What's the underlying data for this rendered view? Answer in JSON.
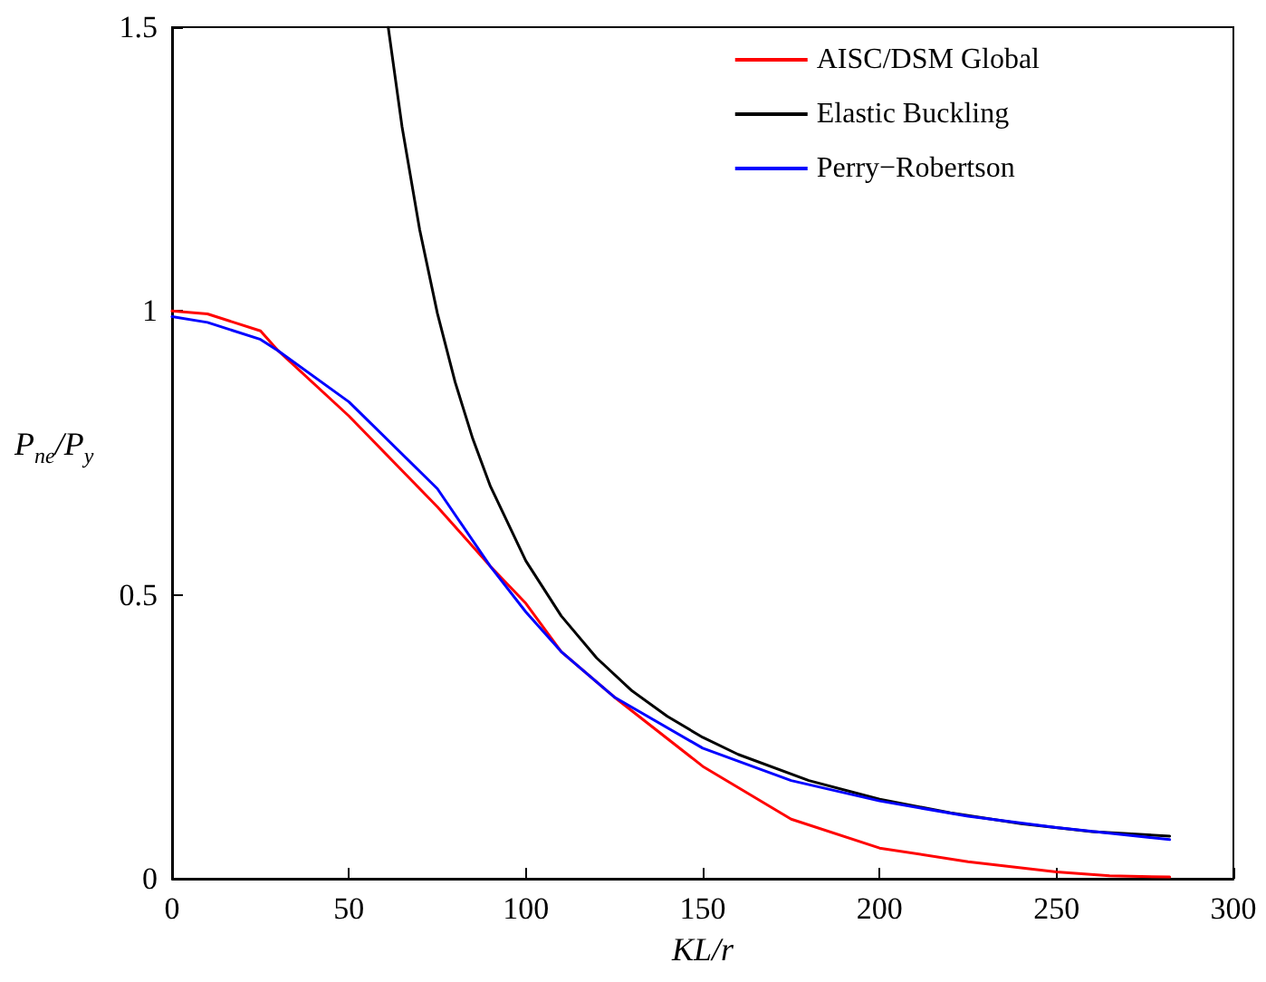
{
  "chart_data": {
    "type": "line",
    "xlabel": "KL/r",
    "ylabel": "P$_{ne}$/P$_{y}$",
    "xlim": [
      0,
      300
    ],
    "xticks": [
      0,
      50,
      100,
      150,
      200,
      250,
      300
    ],
    "ylim": [
      0,
      1.5
    ],
    "yticks": [
      0,
      0.5,
      1,
      1.5
    ],
    "grid": false,
    "legend": "top right",
    "marker": "none",
    "line_style": "solid",
    "series": [
      {
        "name": "AISC/DSM Global",
        "color": "#ff0000",
        "x": [
          0,
          10,
          25,
          30,
          50,
          75,
          90,
          100,
          110,
          125,
          150,
          175,
          200,
          225,
          250,
          265,
          282
        ],
        "values": [
          1.0,
          0.995,
          0.965,
          0.93,
          0.815,
          0.655,
          0.55,
          0.485,
          0.4,
          0.32,
          0.198,
          0.105,
          0.054,
          0.03,
          0.012,
          0.005,
          0.003
        ]
      },
      {
        "name": "Elastic Buckling",
        "color": "#000000",
        "x": [
          61.1,
          65,
          70,
          75,
          80,
          85,
          90,
          100,
          110,
          120,
          130,
          140,
          150,
          160,
          180,
          200,
          220,
          240,
          260,
          282
        ],
        "values": [
          1.5,
          1.325,
          1.143,
          0.996,
          0.875,
          0.775,
          0.691,
          0.56,
          0.463,
          0.389,
          0.331,
          0.286,
          0.249,
          0.219,
          0.173,
          0.14,
          0.116,
          0.097,
          0.083,
          0.075
        ]
      },
      {
        "name": "Perry−Robertson",
        "color": "#0000ff",
        "x": [
          0,
          10,
          25,
          30,
          50,
          75,
          90,
          100,
          110,
          125,
          150,
          175,
          200,
          225,
          250,
          282
        ],
        "values": [
          0.99,
          0.98,
          0.95,
          0.93,
          0.84,
          0.687,
          0.55,
          0.47,
          0.4,
          0.32,
          0.23,
          0.173,
          0.137,
          0.11,
          0.09,
          0.069
        ]
      }
    ]
  }
}
